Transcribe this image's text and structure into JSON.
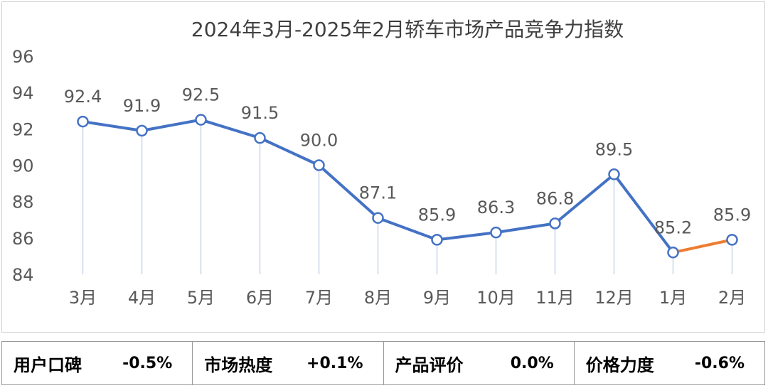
{
  "colors": {
    "line": "#4472C4",
    "last_segment": "#ED7D31",
    "marker_fill": "#ffffff",
    "drop_line": "#c9d6ea",
    "text": "#595959",
    "title": "#404040"
  },
  "chart_data": {
    "type": "line",
    "title": "2024年3月-2025年2月轿车市场产品竞争力指数",
    "categories": [
      "3月",
      "4月",
      "5月",
      "6月",
      "7月",
      "8月",
      "9月",
      "10月",
      "11月",
      "12月",
      "1月",
      "2月"
    ],
    "values": [
      92.4,
      91.9,
      92.5,
      91.5,
      90.0,
      87.1,
      85.9,
      86.3,
      86.8,
      89.5,
      85.2,
      85.9
    ],
    "data_labels": [
      "92.4",
      "91.9",
      "92.5",
      "91.5",
      "90.0",
      "87.1",
      "85.9",
      "86.3",
      "86.8",
      "89.5",
      "85.2",
      "85.9"
    ],
    "ylim": [
      84,
      96
    ],
    "yticks": [
      84,
      86,
      88,
      90,
      92,
      94,
      96
    ],
    "xlabel": "",
    "ylabel": "",
    "grid": false,
    "highlight_last_segment": true
  },
  "stats": [
    {
      "label": "用户口碑",
      "value": "-0.5%"
    },
    {
      "label": "市场热度",
      "value": "+0.1%"
    },
    {
      "label": "产品评价",
      "value": "0.0%"
    },
    {
      "label": "价格力度",
      "value": "-0.6%"
    }
  ]
}
